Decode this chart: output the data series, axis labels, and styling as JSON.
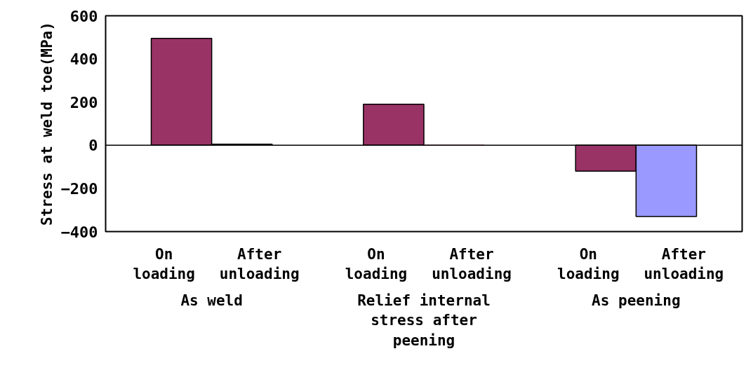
{
  "chart_data": {
    "type": "bar",
    "ylabel": "Stress at weld toe(MPa)",
    "categories": [
      "On loading",
      "After unloading",
      "On loading",
      "After unloading",
      "On loading",
      "After unloading"
    ],
    "values": [
      495,
      5,
      190,
      0,
      -120,
      -330
    ],
    "colors": [
      "#993366",
      "#993366",
      "#993366",
      "#993366",
      "#993366",
      "#9999ff"
    ],
    "ylim": [
      -400,
      600
    ],
    "yticks": [
      -400,
      -200,
      0,
      200,
      400,
      600
    ],
    "annotations": [
      "As weld",
      "Relief internal stress after peening",
      "As peening"
    ]
  }
}
